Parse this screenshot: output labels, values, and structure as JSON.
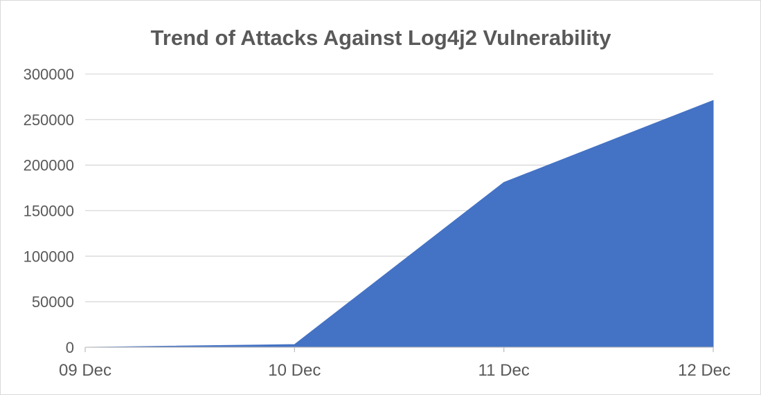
{
  "chart_data": {
    "type": "area",
    "title": "Trend of Attacks Against Log4j2 Vulnerability",
    "xlabel": "",
    "ylabel": "",
    "categories": [
      "09 Dec",
      "10 Dec",
      "11 Dec",
      "12 Dec"
    ],
    "series": [
      {
        "values": [
          0,
          3000,
          181000,
          271000
        ],
        "color": "#4472c4"
      }
    ],
    "ylim": [
      0,
      300000
    ],
    "yticks": [
      0,
      50000,
      100000,
      150000,
      200000,
      250000,
      300000
    ],
    "ytick_labels": [
      "0",
      "50000",
      "100000",
      "150000",
      "200000",
      "250000",
      "300000"
    ],
    "grid": true,
    "legend": "none"
  }
}
